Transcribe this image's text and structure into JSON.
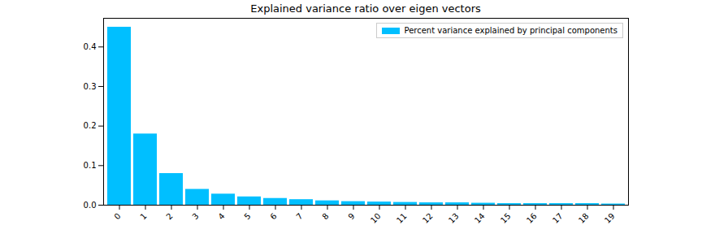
{
  "chart_data": {
    "type": "bar",
    "title": "Explained variance ratio over eigen vectors",
    "categories": [
      "0",
      "1",
      "2",
      "3",
      "4",
      "5",
      "6",
      "7",
      "8",
      "9",
      "10",
      "11",
      "12",
      "13",
      "14",
      "15",
      "16",
      "17",
      "18",
      "19"
    ],
    "series": [
      {
        "name": "Percent variance explained by principal components",
        "color": "#00bfff",
        "values": [
          0.45,
          0.18,
          0.08,
          0.04,
          0.028,
          0.021,
          0.017,
          0.014,
          0.011,
          0.009,
          0.008,
          0.007,
          0.006,
          0.006,
          0.005,
          0.004,
          0.004,
          0.004,
          0.004,
          0.003
        ]
      }
    ],
    "ylim": [
      0,
      0.4725
    ],
    "yticks": [
      {
        "value": 0,
        "label": "0.0"
      },
      0.1,
      0.2,
      0.3,
      0.4
    ],
    "grid": false,
    "legend": "upper right"
  }
}
